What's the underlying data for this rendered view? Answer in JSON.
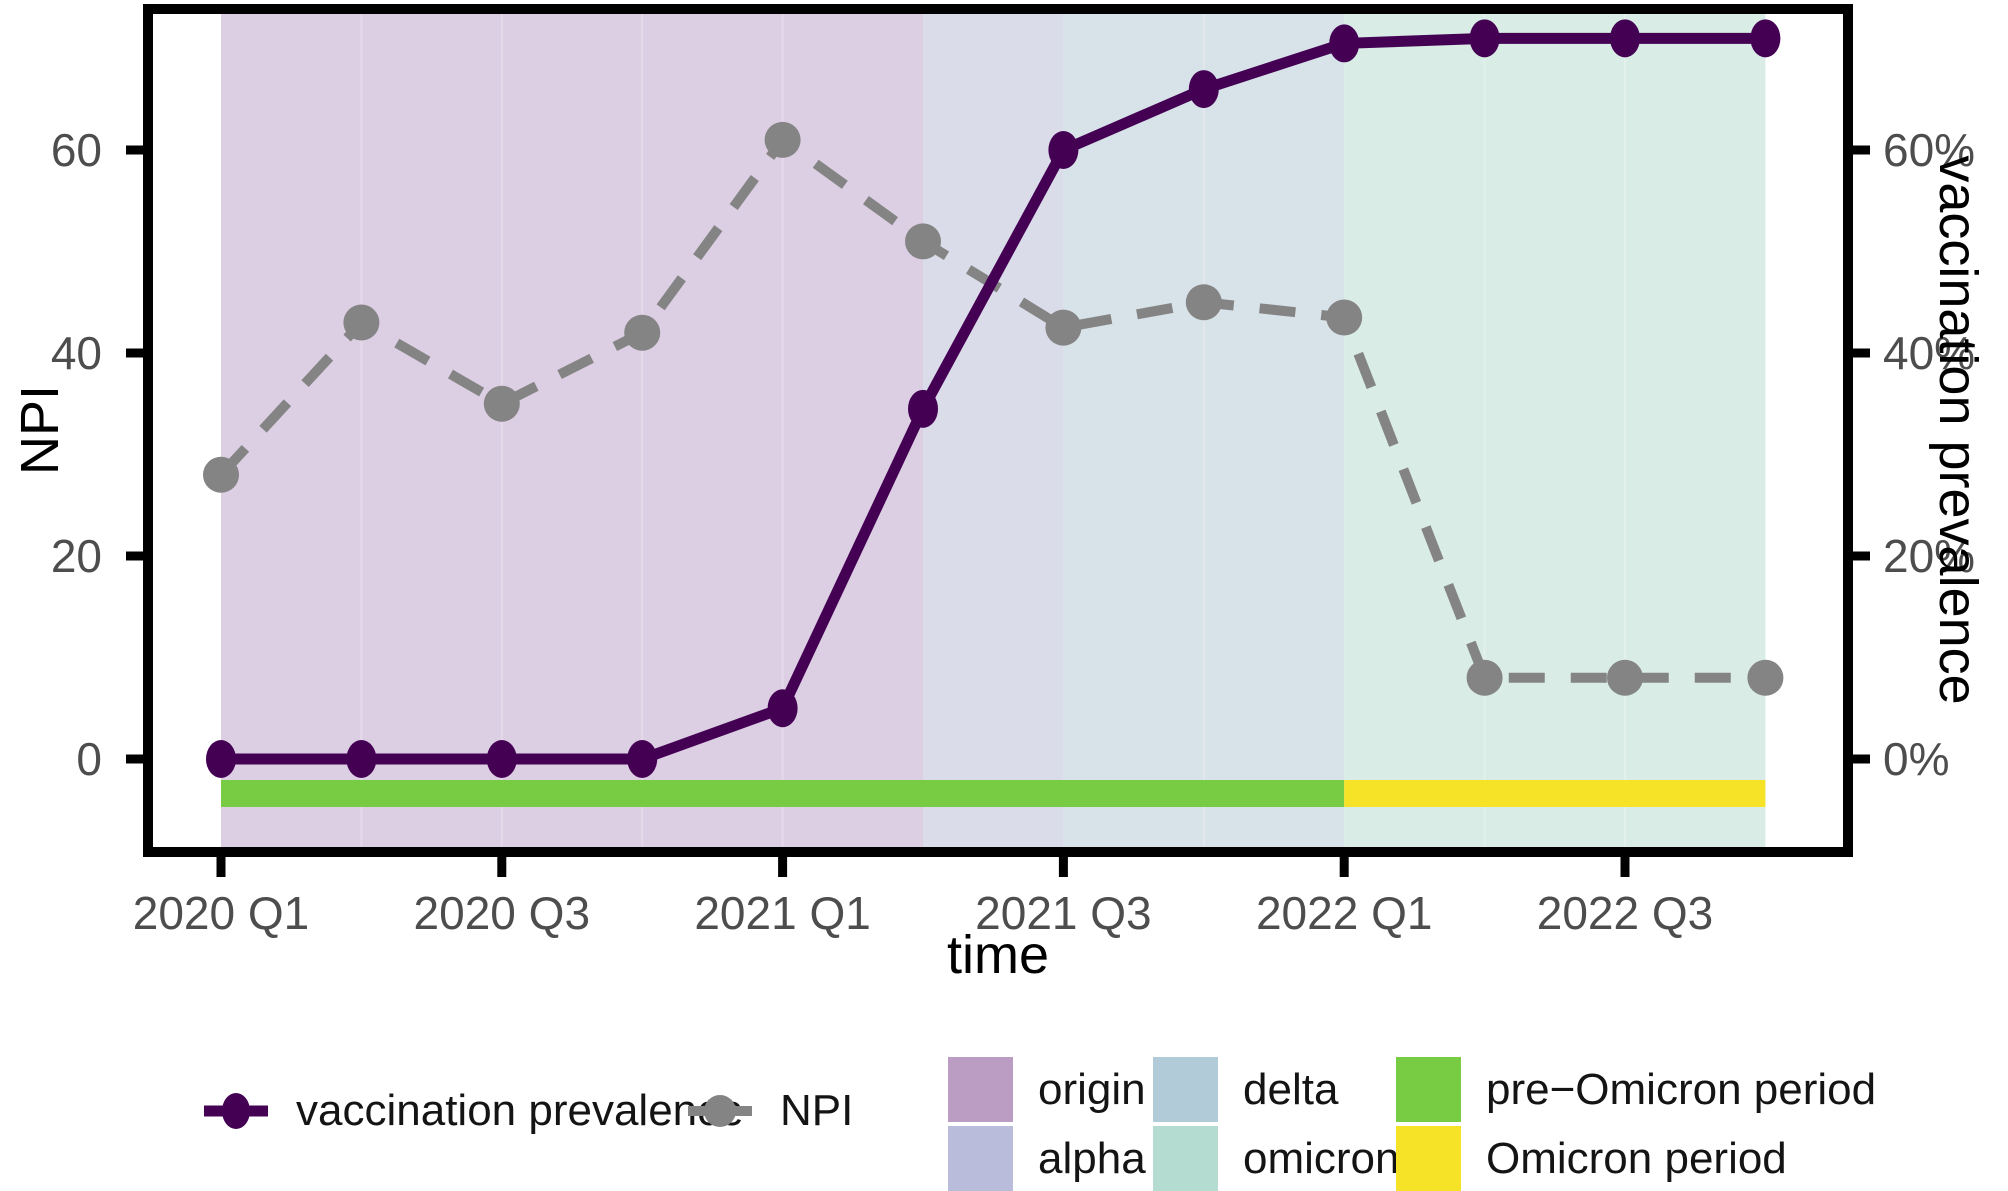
{
  "figure": {
    "background": "#ffffff"
  },
  "colors": {
    "panel_border": "#000000",
    "tick_mark": "#000000",
    "tick_label": "#4d4d4d",
    "axis_title": "#000000",
    "legend_text": "#141414",
    "quarter_seam": "#ffffff"
  },
  "chart_data": {
    "type": "line",
    "title": "",
    "xlabel": "time",
    "grid": false,
    "legend_position": "bottom",
    "left_axis": {
      "label": "NPI",
      "tick_values": [
        0,
        20,
        40,
        60
      ],
      "tick_labels": [
        "0",
        "20",
        "40",
        "60"
      ]
    },
    "right_axis": {
      "label": "vaccination prevalence",
      "tick_values": [
        0,
        20,
        40,
        60
      ],
      "tick_labels": [
        "0%",
        "20%",
        "40%",
        "60%"
      ]
    },
    "ylim": [
      -8.5,
      74
    ],
    "x": [
      "2020 Q1",
      "2020 Q2",
      "2020 Q3",
      "2020 Q4",
      "2021 Q1",
      "2021 Q2",
      "2021 Q3",
      "2021 Q4",
      "2022 Q1",
      "2022 Q2",
      "2022 Q3",
      "2022 Q4"
    ],
    "x_tick_labels": [
      "2020 Q1",
      "2020 Q3",
      "2021 Q1",
      "2021 Q3",
      "2022 Q1",
      "2022 Q3"
    ],
    "series": [
      {
        "name": "vaccination prevalence",
        "axis": "right",
        "unit": "%",
        "color": "#440154",
        "style": "solid",
        "marker": "ellipse",
        "values": [
          0,
          0,
          0,
          0,
          5,
          34.5,
          60,
          66,
          70.5,
          71,
          71,
          71
        ]
      },
      {
        "name": "NPI",
        "axis": "left",
        "unit": "",
        "color": "#848484",
        "style": "dashed",
        "marker": "circle",
        "values": [
          28,
          43,
          35,
          42,
          61,
          51,
          42.5,
          45,
          43.5,
          8,
          8,
          8
        ]
      }
    ],
    "regions": [
      {
        "name": "origin",
        "from": "2020 Q1",
        "to": "2021 Q2",
        "color": "#bb9dc4",
        "bg": "#dccee3"
      },
      {
        "name": "alpha",
        "from": "2021 Q2",
        "to": "2021 Q3",
        "color": "#b9bcdb",
        "bg": "#dbdcea"
      },
      {
        "name": "delta",
        "from": "2021 Q3",
        "to": "2022 Q1",
        "color": "#b2cbd8",
        "bg": "#d8e2e9"
      },
      {
        "name": "omicron",
        "from": "2022 Q1",
        "to": "2022 Q4",
        "color": "#b5dcd0",
        "bg": "#d9ece5"
      }
    ],
    "period_bar": [
      {
        "name": "pre−Omicron period",
        "from": "2020 Q1",
        "to": "2022 Q1",
        "color": "#77cc43"
      },
      {
        "name": "Omicron period",
        "from": "2022 Q1",
        "to": "2022 Q4",
        "color": "#f6e226"
      }
    ]
  }
}
